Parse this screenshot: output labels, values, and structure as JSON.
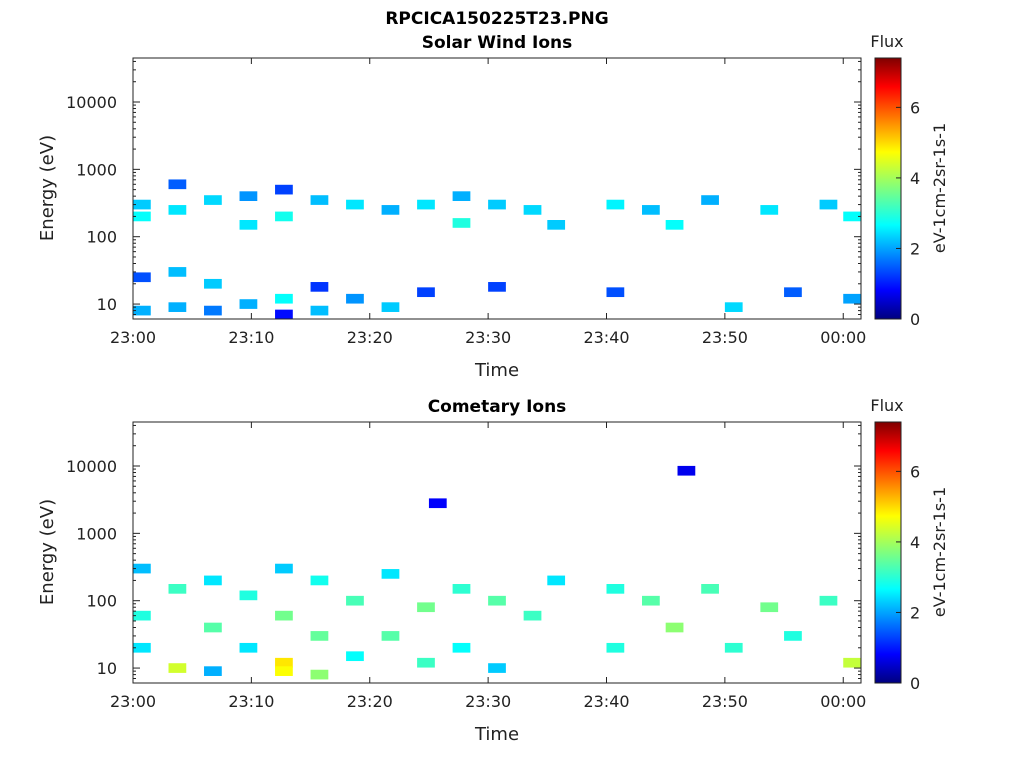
{
  "figure_title": "RPCICA150225T23.PNG",
  "colorbar": {
    "title": "Flux",
    "label": "eV-1cm-2sr-1s-1",
    "ticks": [
      "0",
      "2",
      "4",
      "6"
    ],
    "range": [
      0,
      7.4
    ]
  },
  "chart_data": [
    {
      "type": "heatmap",
      "title": "Solar Wind Ions",
      "xlabel": "Time",
      "ylabel": "Energy (eV)",
      "x_ticks": [
        "23:00",
        "23:10",
        "23:20",
        "23:30",
        "23:40",
        "23:50",
        "00:00"
      ],
      "y_ticks": [
        "10",
        "100",
        "1000",
        "10000"
      ],
      "y_scale": "log",
      "y_range_eV": [
        6,
        45000
      ],
      "x_range_min": [
        0,
        61.5
      ],
      "data_gap_min": [
        36.5,
        39.5
      ],
      "dominant_levels": "1-3 (blue-cyan)",
      "cells": [
        {
          "t": 0,
          "e": 300,
          "v": 2.4
        },
        {
          "t": 0,
          "e": 200,
          "v": 2.8
        },
        {
          "t": 0,
          "e": 25,
          "v": 1.5
        },
        {
          "t": 0,
          "e": 8,
          "v": 2.2
        },
        {
          "t": 3,
          "e": 600,
          "v": 1.6
        },
        {
          "t": 3,
          "e": 250,
          "v": 2.6
        },
        {
          "t": 3,
          "e": 30,
          "v": 2.3
        },
        {
          "t": 3,
          "e": 9,
          "v": 2.2
        },
        {
          "t": 6,
          "e": 350,
          "v": 2.5
        },
        {
          "t": 6,
          "e": 20,
          "v": 2.4
        },
        {
          "t": 6,
          "e": 8,
          "v": 1.8
        },
        {
          "t": 9,
          "e": 400,
          "v": 2.0
        },
        {
          "t": 9,
          "e": 150,
          "v": 2.6
        },
        {
          "t": 9,
          "e": 10,
          "v": 2.2
        },
        {
          "t": 12,
          "e": 500,
          "v": 1.4
        },
        {
          "t": 12,
          "e": 200,
          "v": 2.9
        },
        {
          "t": 12,
          "e": 12,
          "v": 2.8
        },
        {
          "t": 12,
          "e": 7,
          "v": 1.0
        },
        {
          "t": 15,
          "e": 350,
          "v": 2.3
        },
        {
          "t": 15,
          "e": 18,
          "v": 1.3
        },
        {
          "t": 15,
          "e": 8,
          "v": 2.3
        },
        {
          "t": 18,
          "e": 300,
          "v": 2.6
        },
        {
          "t": 18,
          "e": 12,
          "v": 2.0
        },
        {
          "t": 21,
          "e": 250,
          "v": 2.2
        },
        {
          "t": 21,
          "e": 9,
          "v": 2.4
        },
        {
          "t": 24,
          "e": 300,
          "v": 2.6
        },
        {
          "t": 24,
          "e": 15,
          "v": 1.4
        },
        {
          "t": 27,
          "e": 400,
          "v": 2.2
        },
        {
          "t": 27,
          "e": 160,
          "v": 3.0
        },
        {
          "t": 30,
          "e": 300,
          "v": 2.4
        },
        {
          "t": 30,
          "e": 18,
          "v": 1.4
        },
        {
          "t": 33,
          "e": 250,
          "v": 2.5
        },
        {
          "t": 35,
          "e": 150,
          "v": 2.4
        },
        {
          "t": 40,
          "e": 300,
          "v": 2.7
        },
        {
          "t": 40,
          "e": 15,
          "v": 1.5
        },
        {
          "t": 43,
          "e": 250,
          "v": 2.3
        },
        {
          "t": 45,
          "e": 150,
          "v": 2.8
        },
        {
          "t": 48,
          "e": 350,
          "v": 2.2
        },
        {
          "t": 50,
          "e": 9,
          "v": 2.5
        },
        {
          "t": 53,
          "e": 250,
          "v": 2.6
        },
        {
          "t": 55,
          "e": 15,
          "v": 1.6
        },
        {
          "t": 58,
          "e": 300,
          "v": 2.4
        },
        {
          "t": 60,
          "e": 200,
          "v": 2.8
        },
        {
          "t": 60,
          "e": 12,
          "v": 2.1
        }
      ]
    },
    {
      "type": "heatmap",
      "title": "Cometary Ions",
      "xlabel": "Time",
      "ylabel": "Energy (eV)",
      "x_ticks": [
        "23:00",
        "23:10",
        "23:20",
        "23:30",
        "23:40",
        "23:50",
        "00:00"
      ],
      "y_ticks": [
        "10",
        "100",
        "1000",
        "10000"
      ],
      "y_scale": "log",
      "y_range_eV": [
        6,
        45000
      ],
      "x_range_min": [
        0,
        61.5
      ],
      "data_gap_min": [
        36.5,
        39.5
      ],
      "dominant_levels": "2-4 (cyan-green), peaks ~5 near 23:13 below 20 eV",
      "cells": [
        {
          "t": 0,
          "e": 300,
          "v": 2.3
        },
        {
          "t": 0,
          "e": 60,
          "v": 3.0
        },
        {
          "t": 0,
          "e": 20,
          "v": 2.6
        },
        {
          "t": 3,
          "e": 150,
          "v": 3.2
        },
        {
          "t": 3,
          "e": 10,
          "v": 4.3
        },
        {
          "t": 6,
          "e": 200,
          "v": 2.6
        },
        {
          "t": 6,
          "e": 40,
          "v": 3.4
        },
        {
          "t": 6,
          "e": 9,
          "v": 2.2
        },
        {
          "t": 9,
          "e": 120,
          "v": 3.0
        },
        {
          "t": 9,
          "e": 20,
          "v": 2.6
        },
        {
          "t": 12,
          "e": 300,
          "v": 2.4
        },
        {
          "t": 12,
          "e": 60,
          "v": 3.6
        },
        {
          "t": 12,
          "e": 12,
          "v": 4.8
        },
        {
          "t": 12,
          "e": 9,
          "v": 4.6
        },
        {
          "t": 15,
          "e": 200,
          "v": 2.9
        },
        {
          "t": 15,
          "e": 30,
          "v": 3.5
        },
        {
          "t": 15,
          "e": 8,
          "v": 3.8
        },
        {
          "t": 18,
          "e": 100,
          "v": 3.3
        },
        {
          "t": 18,
          "e": 15,
          "v": 2.8
        },
        {
          "t": 21,
          "e": 250,
          "v": 2.6
        },
        {
          "t": 21,
          "e": 30,
          "v": 3.4
        },
        {
          "t": 24,
          "e": 80,
          "v": 3.6
        },
        {
          "t": 24,
          "e": 12,
          "v": 3.2
        },
        {
          "t": 27,
          "e": 150,
          "v": 3.1
        },
        {
          "t": 27,
          "e": 20,
          "v": 2.8
        },
        {
          "t": 30,
          "e": 100,
          "v": 3.4
        },
        {
          "t": 30,
          "e": 10,
          "v": 2.4
        },
        {
          "t": 33,
          "e": 60,
          "v": 3.2
        },
        {
          "t": 35,
          "e": 200,
          "v": 2.6
        },
        {
          "t": 40,
          "e": 150,
          "v": 3.0
        },
        {
          "t": 40,
          "e": 20,
          "v": 3.0
        },
        {
          "t": 43,
          "e": 100,
          "v": 3.4
        },
        {
          "t": 45,
          "e": 40,
          "v": 3.8
        },
        {
          "t": 48,
          "e": 150,
          "v": 3.3
        },
        {
          "t": 50,
          "e": 20,
          "v": 3.1
        },
        {
          "t": 53,
          "e": 80,
          "v": 3.6
        },
        {
          "t": 55,
          "e": 30,
          "v": 3.0
        },
        {
          "t": 58,
          "e": 100,
          "v": 3.2
        },
        {
          "t": 60,
          "e": 12,
          "v": 4.2
        },
        {
          "t": 46,
          "e": 8500,
          "v": 0.8
        },
        {
          "t": 25,
          "e": 2800,
          "v": 0.9
        }
      ]
    }
  ]
}
